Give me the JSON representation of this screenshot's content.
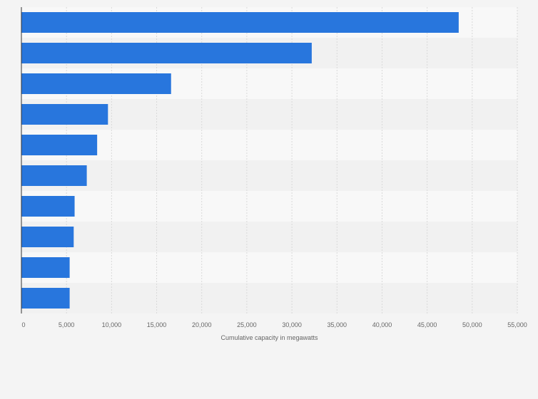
{
  "chart_data": {
    "type": "bar",
    "orientation": "horizontal",
    "categories": [
      "",
      "",
      "",
      "",
      "",
      "",
      "",
      "",
      "",
      ""
    ],
    "values": [
      48500,
      32200,
      16600,
      9600,
      8400,
      7250,
      5900,
      5800,
      5350,
      5350
    ],
    "xlabel": "Cumulative capacity in megawatts",
    "ylabel": "",
    "xlim": [
      0,
      55000
    ],
    "x_ticks": [
      0,
      5000,
      10000,
      15000,
      20000,
      25000,
      30000,
      35000,
      40000,
      45000,
      50000,
      55000
    ],
    "x_tick_labels": [
      "0",
      "5,000",
      "10,000",
      "15,000",
      "20,000",
      "25,000",
      "30,000",
      "35,000",
      "40,000",
      "45,000",
      "50,000",
      "55,000"
    ],
    "grid": true,
    "colors": {
      "bar": "#2876dd",
      "background": "#f4f4f4",
      "band_light": "#f8f8f8",
      "band_dark": "#f1f1f1",
      "grid": "#d9d9d9",
      "axis": "#333333"
    }
  }
}
